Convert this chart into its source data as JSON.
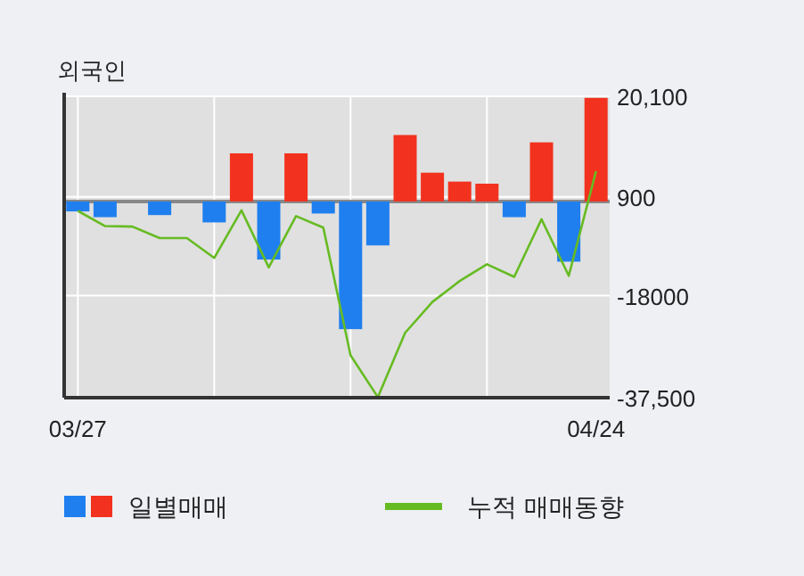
{
  "chart_data": {
    "type": "bar",
    "title": "외국인",
    "categories": [
      "03/27",
      null,
      null,
      null,
      null,
      null,
      null,
      null,
      null,
      null,
      null,
      null,
      null,
      null,
      null,
      null,
      null,
      null,
      null,
      "04/24"
    ],
    "series": [
      {
        "name": "일별매매",
        "colors": [
          "#1f7fef",
          "#1f7fef",
          "#1f7fef",
          "#1f7fef",
          "#1f7fef",
          "#1f7fef",
          "#f2321e",
          "#1f7fef",
          "#f2321e",
          "#1f7fef",
          "#1f7fef",
          "#1f7fef",
          "#f2321e",
          "#f2321e",
          "#f2321e",
          "#f2321e",
          "#1f7fef",
          "#f2321e",
          "#1f7fef",
          "#f2321e"
        ],
        "values": [
          -1900,
          -3000,
          null,
          -2600,
          null,
          -4000,
          9200,
          -11100,
          9200,
          -2300,
          -24400,
          -8400,
          12700,
          5500,
          3800,
          3400,
          -3000,
          11300,
          -11500,
          19800
        ]
      },
      {
        "name": "누적 매매동향",
        "type": "line",
        "color": "#66bb22",
        "values": [
          -1800,
          -4700,
          -4800,
          -7000,
          -7000,
          -10800,
          -1700,
          -12600,
          -2800,
          -5000,
          -29400,
          -37400,
          -25100,
          -19200,
          -15200,
          -12000,
          -14400,
          -3400,
          -14200,
          5800
        ]
      }
    ],
    "ylim": [
      -37500,
      20100
    ],
    "yticks": [
      {
        "value": 20100,
        "label": "20,100"
      },
      900,
      -18000,
      {
        "value": -37500,
        "label": "-37,500"
      }
    ],
    "ref_lines": [
      {
        "axis": "y",
        "value": 0,
        "color": "#888888"
      }
    ],
    "grid": true,
    "legend": "bottom left"
  }
}
